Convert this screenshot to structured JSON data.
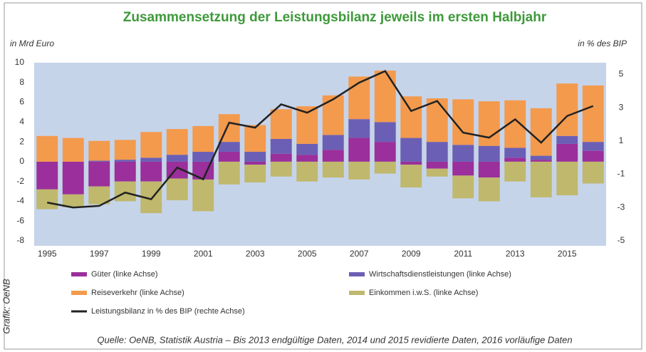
{
  "chart_data": {
    "type": "bar",
    "stacked": true,
    "title": "Zusammensetzung der Leistungsbilanz jeweils im ersten Halbjahr",
    "y_label": "in Mrd Euro",
    "y2_label": "in % des BIP",
    "source": "Quelle: OeNB, Statistik Austria – Bis 2013 endgültige Daten, 2014 und 2015 revidierte Daten, 2016 vorläufige Daten",
    "credit": "Grafik: OeNB",
    "categories": [
      "1995",
      null,
      "1997",
      null,
      "1999",
      null,
      "2001",
      null,
      "2003",
      null,
      "2005",
      null,
      "2007",
      null,
      "2009",
      null,
      "2011",
      null,
      "2013",
      null,
      "2015",
      null
    ],
    "series": [
      {
        "name": "Güter (linke Achse)",
        "color": "#9b2f9b",
        "values": [
          -2.8,
          -3.3,
          -2.5,
          -2.0,
          -2.0,
          -1.7,
          -1.8,
          1.0,
          -0.3,
          0.8,
          0.7,
          1.2,
          2.4,
          2.0,
          -0.3,
          -0.7,
          -1.4,
          -1.6,
          0.4,
          0.2,
          1.8,
          1.1
        ]
      },
      {
        "name": "Wirtschaftsdienstleistungen (linke Achse)",
        "color": "#6b5fb5",
        "values": [
          0,
          0,
          0.1,
          0.2,
          0.4,
          0.7,
          1.0,
          1.0,
          1.0,
          1.5,
          1.1,
          1.5,
          1.9,
          2.0,
          2.4,
          2.0,
          1.7,
          1.6,
          1.0,
          0.4,
          0.8,
          0.9
        ]
      },
      {
        "name": "Reiseverkehr (linke Achse)",
        "color": "#f39a4d",
        "values": [
          2.6,
          2.4,
          2.0,
          2.0,
          2.6,
          2.6,
          2.6,
          2.8,
          2.7,
          3.0,
          3.8,
          4.0,
          4.3,
          5.2,
          4.2,
          4.4,
          4.6,
          4.5,
          4.8,
          4.8,
          5.3,
          5.7
        ]
      },
      {
        "name": "Einkommen i.w.S. (linke Achse)",
        "color": "#bfb86d",
        "values": [
          -2.0,
          -1.3,
          -1.8,
          -2.0,
          -3.2,
          -2.2,
          -3.2,
          -2.3,
          -1.8,
          -1.5,
          -2.0,
          -1.6,
          -1.8,
          -1.2,
          -2.3,
          -0.8,
          -2.3,
          -2.4,
          -2.0,
          -3.6,
          -3.4,
          -2.2
        ]
      },
      {
        "name": "Leistungsbilanz in % des BIP (rechte Achse)",
        "color": "#222222",
        "type": "line",
        "axis": "y2",
        "values": [
          -2.7,
          -3.0,
          -2.9,
          -2.1,
          -2.5,
          -0.6,
          -1.3,
          2.1,
          1.8,
          3.2,
          2.7,
          3.5,
          4.5,
          5.2,
          2.8,
          3.4,
          1.5,
          1.2,
          2.3,
          0.9,
          2.5,
          3.1
        ]
      }
    ],
    "ylim": [
      -8.5,
      10
    ],
    "yticks": [
      -8,
      -6,
      -4,
      -2,
      0,
      2,
      4,
      6,
      8,
      10
    ],
    "y2lim": [
      -5.3,
      5.7
    ],
    "y2ticks": [
      -5,
      -3,
      -1,
      1,
      3,
      5
    ],
    "background": "#c6d4ea"
  }
}
